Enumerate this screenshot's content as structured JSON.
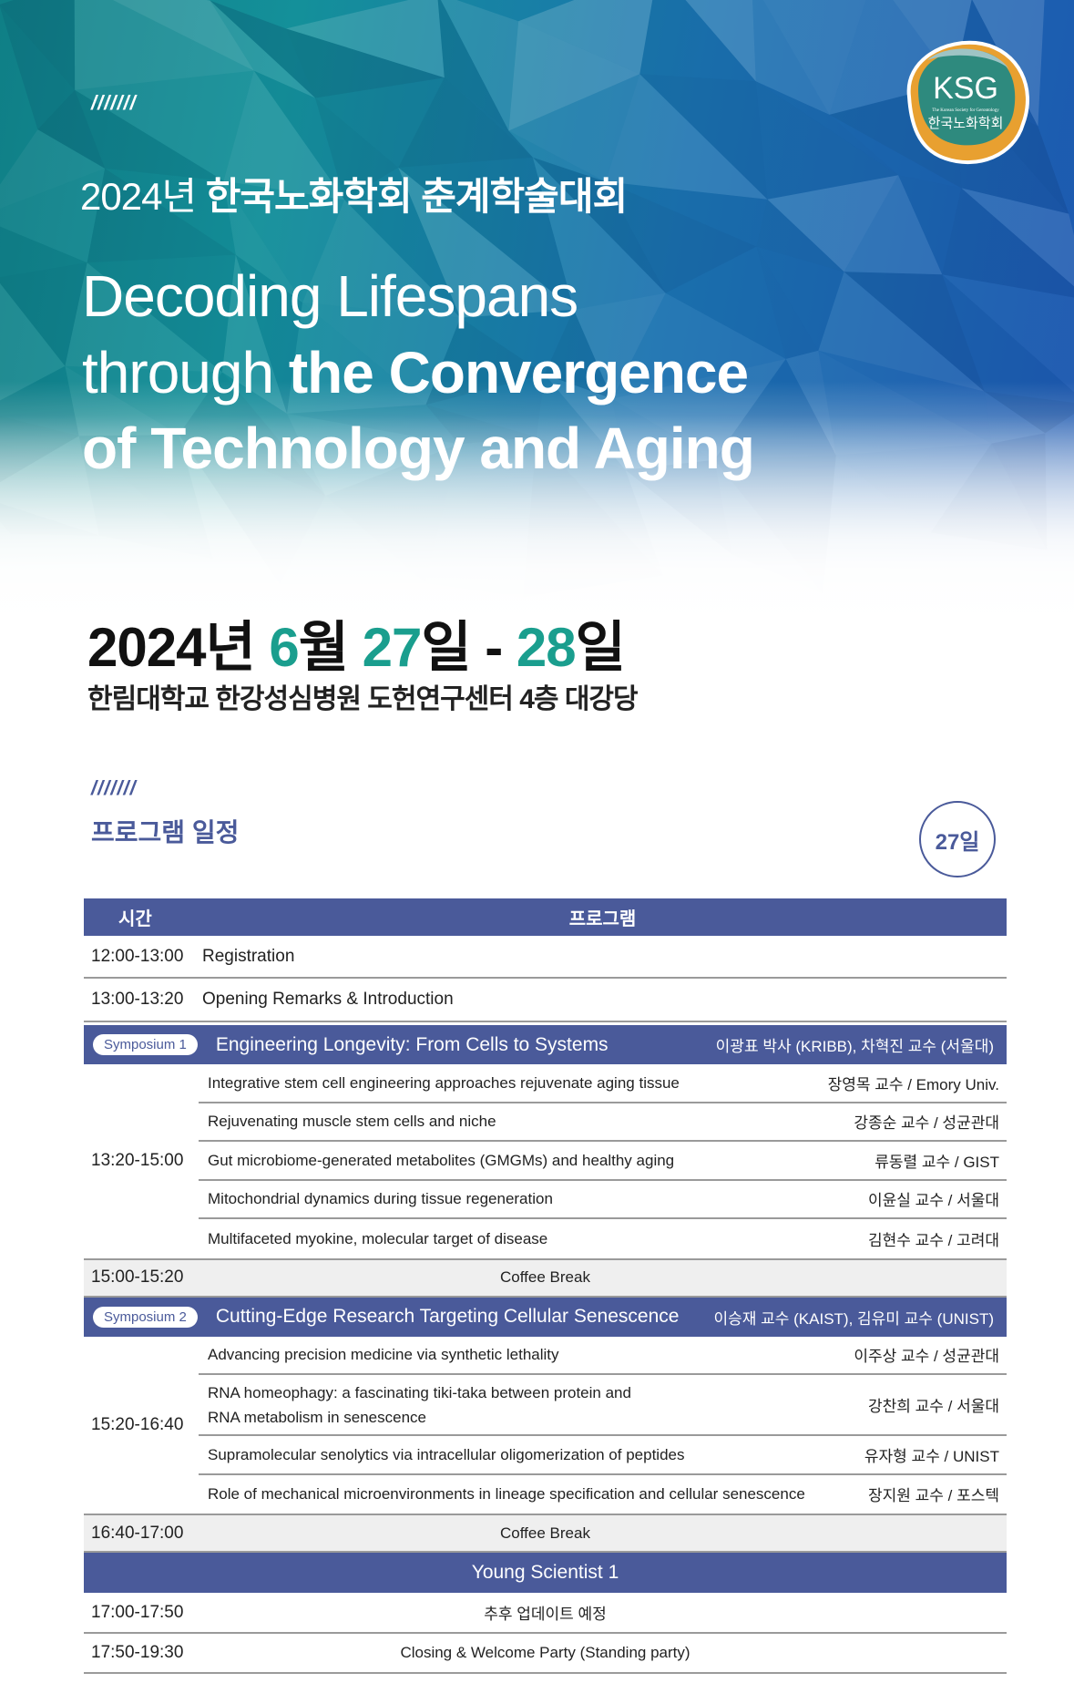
{
  "colors": {
    "accent": "#4a5a9a",
    "highlight": "#1a9e8e",
    "hero_teal": "#14909a",
    "hero_blue": "#1d56b0"
  },
  "logo": {
    "text": "KSG",
    "sub_en": "The Korean Society for Gerontology",
    "sub_kr": "한국노화학회"
  },
  "hero": {
    "slashes": "///////",
    "kr_title_year": "2024년",
    "kr_title_main": "한국노화학회 춘계학술대회",
    "en_line1": "Decoding Lifespans",
    "en_line2_light": "through ",
    "en_line2_bold": "the Convergence",
    "en_line3": "of Technology and Aging"
  },
  "date": {
    "year": "2024년 ",
    "month_num": "6",
    "month": "월 ",
    "d1": "27",
    "d1_unit": "일",
    "sep": " - ",
    "d2": "28",
    "d2_unit": "일"
  },
  "venue": "한림대학교  한강성심병원 도헌연구센터 4층 대강당",
  "program": {
    "slashes": "///////",
    "title": "프로그램 일정",
    "day_badge": "27일",
    "header": {
      "time": "시간",
      "program": "프로그램"
    },
    "rows_top": [
      {
        "time": "12:00-13:00",
        "title": "Registration"
      },
      {
        "time": "13:00-13:20",
        "title": "Opening Remarks & Introduction"
      }
    ],
    "sym1": {
      "label": "Symposium 1",
      "title": "Engineering Longevity: From Cells to Systems",
      "chairs": "이광표 박사 (KRIBB), 차혁진 교수 (서울대)",
      "time": "13:20-15:00",
      "talks": [
        {
          "title": "Integrative stem cell engineering approaches rejuvenate aging tissue",
          "speaker": "장영목 교수 / Emory Univ."
        },
        {
          "title": "Rejuvenating muscle stem cells and niche",
          "speaker": "강종순 교수 / 성균관대"
        },
        {
          "title": "Gut microbiome-generated metabolites (GMGMs) and healthy aging",
          "speaker": "류동렬 교수 / GIST"
        },
        {
          "title": "Mitochondrial dynamics during tissue regeneration",
          "speaker": "이윤실 교수 / 서울대"
        },
        {
          "title": "Multifaceted myokine, molecular target of disease",
          "speaker": "김현수 교수 / 고려대"
        }
      ]
    },
    "break1": {
      "time": "15:00-15:20",
      "title": "Coffee Break"
    },
    "sym2": {
      "label": "Symposium 2",
      "title": "Cutting-Edge Research Targeting Cellular Senescence",
      "chairs": "이승재 교수 (KAIST), 김유미 교수 (UNIST)",
      "time": "15:20-16:40",
      "talks": [
        {
          "title": "Advancing precision medicine via synthetic lethality",
          "speaker": "이주상 교수 / 성균관대"
        },
        {
          "title": "RNA homeophagy: a fascinating tiki-taka between protein and",
          "title2": "RNA metabolism in senescence",
          "speaker": "강찬희 교수 / 서울대"
        },
        {
          "title": "Supramolecular senolytics via intracellular oligomerization of peptides",
          "speaker": "유자형 교수 / UNIST"
        },
        {
          "title": "Role of mechanical microenvironments in lineage specification and cellular senescence",
          "speaker": "장지원 교수 / 포스텍"
        }
      ]
    },
    "break2": {
      "time": "16:40-17:00",
      "title": "Coffee Break"
    },
    "young": "Young Scientist 1",
    "rows_bottom": [
      {
        "time": "17:00-17:50",
        "title": "추후 업데이트 예정"
      },
      {
        "time": "17:50-19:30",
        "title": "Closing & Welcome Party (Standing party)"
      }
    ]
  }
}
